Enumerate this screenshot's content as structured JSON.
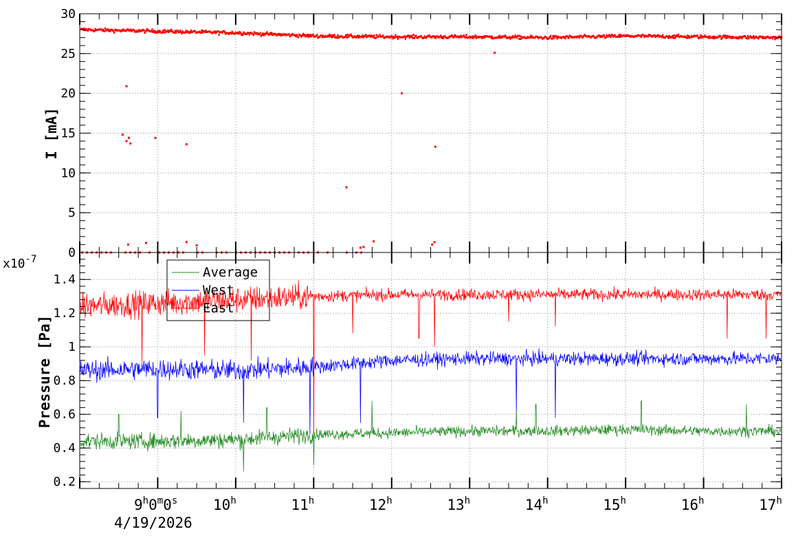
{
  "chart_data": [
    {
      "type": "scatter",
      "ylabel": "I [mA]",
      "ylim": [
        0,
        30
      ],
      "xlim": [
        8.0,
        17.0
      ],
      "yticks": [
        "0",
        "5",
        "10",
        "15",
        "20",
        "25",
        "30"
      ],
      "grid": true,
      "series": [
        {
          "color": "#ff0000",
          "baseline_level": [
            [
              8.0,
              28.0
            ],
            [
              9.0,
              27.8
            ],
            [
              10.0,
              27.6
            ],
            [
              11.0,
              27.2
            ],
            [
              12.0,
              27.1
            ],
            [
              13.0,
              27.1
            ],
            [
              14.0,
              27.0
            ],
            [
              15.0,
              27.2
            ],
            [
              16.0,
              27.1
            ],
            [
              17.0,
              27.0
            ]
          ],
          "outliers_x": [
            8.6,
            8.55,
            8.6,
            8.63,
            8.65,
            8.97,
            9.37,
            11.42,
            12.13,
            12.56,
            9.37,
            8.62,
            8.85,
            9.5,
            11.6,
            11.64,
            11.77,
            12.52,
            12.55,
            13.32
          ],
          "outliers_y": [
            20.9,
            14.8,
            14.0,
            14.4,
            13.7,
            14.4,
            13.6,
            8.2,
            20.0,
            13.3,
            1.3,
            1.0,
            1.2,
            0.9,
            0.6,
            0.7,
            1.4,
            1.0,
            1.3,
            25.1
          ]
        }
      ]
    },
    {
      "type": "line",
      "ylabel": "Pressure [Pa]",
      "y_multiplier": "x10",
      "y_multiplier_exp": "-7",
      "ylim": [
        0.16,
        1.56
      ],
      "xlim": [
        8.0,
        17.0
      ],
      "yticks": [
        "0.2",
        "0.4",
        "0.6",
        "0.8",
        "1",
        "1.2",
        "1.4"
      ],
      "grid": true,
      "legend_position": "top-left",
      "series": [
        {
          "name": "Average",
          "color": "#228b22",
          "levels": [
            [
              8.0,
              0.44
            ],
            [
              9.0,
              0.44
            ],
            [
              10.0,
              0.45
            ],
            [
              11.0,
              0.48
            ],
            [
              12.0,
              0.49
            ],
            [
              13.0,
              0.5
            ],
            [
              14.0,
              0.5
            ],
            [
              15.0,
              0.51
            ],
            [
              16.0,
              0.5
            ],
            [
              17.0,
              0.5
            ]
          ],
          "spikes_x": [
            8.5,
            9.3,
            10.1,
            10.4,
            11.0,
            11.75,
            13.6,
            13.85,
            15.2,
            16.55
          ],
          "spikes_y": [
            0.6,
            0.62,
            0.26,
            0.64,
            0.3,
            0.68,
            0.62,
            0.66,
            0.68,
            0.66
          ]
        },
        {
          "name": "West",
          "color": "#0000ff",
          "levels": [
            [
              8.0,
              0.86
            ],
            [
              9.0,
              0.87
            ],
            [
              10.0,
              0.86
            ],
            [
              11.0,
              0.88
            ],
            [
              12.0,
              0.92
            ],
            [
              13.0,
              0.93
            ],
            [
              14.0,
              0.93
            ],
            [
              15.0,
              0.93
            ],
            [
              16.0,
              0.93
            ],
            [
              17.0,
              0.93
            ]
          ],
          "spikes_x": [
            9.0,
            10.1,
            10.95,
            11.6,
            13.6,
            14.1
          ],
          "spikes_y": [
            0.58,
            0.55,
            0.48,
            0.55,
            0.6,
            0.58
          ]
        },
        {
          "name": "East",
          "color": "#ff0000",
          "levels": [
            [
              8.0,
              1.24
            ],
            [
              9.0,
              1.26
            ],
            [
              10.0,
              1.28
            ],
            [
              11.0,
              1.3
            ],
            [
              12.0,
              1.31
            ],
            [
              13.0,
              1.31
            ],
            [
              14.0,
              1.31
            ],
            [
              15.0,
              1.31
            ],
            [
              16.0,
              1.31
            ],
            [
              17.0,
              1.31
            ]
          ],
          "spikes_x": [
            8.8,
            9.6,
            10.2,
            11.0,
            11.5,
            12.35,
            12.55,
            13.5,
            14.1,
            16.3,
            16.8
          ],
          "spikes_y": [
            0.9,
            0.95,
            0.92,
            0.48,
            1.08,
            1.05,
            1.0,
            1.15,
            1.12,
            1.05,
            1.05
          ]
        }
      ],
      "legend": [
        "Average",
        "West",
        "East"
      ]
    }
  ],
  "x_axis": {
    "tick_hours": [
      9,
      10,
      11,
      12,
      13,
      14,
      15,
      16,
      17
    ],
    "first_label": {
      "h": "9",
      "m": "0",
      "s": "0"
    },
    "labels": [
      {
        "hour": 10,
        "text": "10"
      },
      {
        "hour": 11,
        "text": "11"
      },
      {
        "hour": 12,
        "text": "12"
      },
      {
        "hour": 13,
        "text": "13"
      },
      {
        "hour": 14,
        "text": "14"
      },
      {
        "hour": 15,
        "text": "15"
      },
      {
        "hour": 16,
        "text": "16"
      },
      {
        "hour": 17,
        "text": "17"
      }
    ],
    "date": "4/19/2026"
  }
}
